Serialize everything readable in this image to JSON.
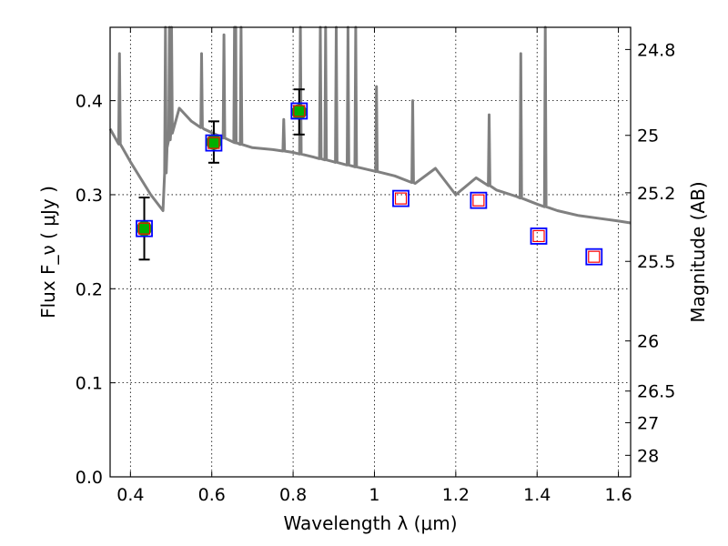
{
  "chart_data": {
    "type": "scatter",
    "xlabel": "Wavelength  λ (μm)",
    "ylabel": "Flux  F_ν  ( μJy )",
    "y2label": "Magnitude (AB)",
    "xlim": [
      0.35,
      1.63
    ],
    "ylim": [
      0.0,
      0.478
    ],
    "grid": true,
    "x_ticks": [
      {
        "v": 0.4,
        "label": "0.4"
      },
      {
        "v": 0.6,
        "label": "0.6"
      },
      {
        "v": 0.8,
        "label": "0.8"
      },
      {
        "v": 1.0,
        "label": "1"
      },
      {
        "v": 1.2,
        "label": "1.2"
      },
      {
        "v": 1.4,
        "label": "1.4"
      },
      {
        "v": 1.6,
        "label": "1.6"
      }
    ],
    "y_ticks": [
      {
        "v": 0.0,
        "label": "0.0"
      },
      {
        "v": 0.1,
        "label": "0.1"
      },
      {
        "v": 0.2,
        "label": "0.2"
      },
      {
        "v": 0.3,
        "label": "0.3"
      },
      {
        "v": 0.4,
        "label": "0.4"
      }
    ],
    "y2_ticks": [
      {
        "flux": 0.4544,
        "label": "24.8"
      },
      {
        "flux": 0.3631,
        "label": "25"
      },
      {
        "flux": 0.302,
        "label": "25.2"
      },
      {
        "flux": 0.2291,
        "label": "25.5"
      },
      {
        "flux": 0.1445,
        "label": "26"
      },
      {
        "flux": 0.0912,
        "label": "26.5"
      },
      {
        "flux": 0.0575,
        "label": "27"
      },
      {
        "flux": 0.0229,
        "label": "28"
      }
    ],
    "model_spectrum": {
      "color": "#808080",
      "continuum": [
        [
          0.35,
          0.37
        ],
        [
          0.4,
          0.335
        ],
        [
          0.45,
          0.3
        ],
        [
          0.48,
          0.283
        ],
        [
          0.49,
          0.35
        ],
        [
          0.52,
          0.392
        ],
        [
          0.55,
          0.378
        ],
        [
          0.58,
          0.37
        ],
        [
          0.62,
          0.362
        ],
        [
          0.66,
          0.355
        ],
        [
          0.7,
          0.35
        ],
        [
          0.75,
          0.348
        ],
        [
          0.8,
          0.345
        ],
        [
          0.85,
          0.34
        ],
        [
          0.9,
          0.335
        ],
        [
          0.95,
          0.33
        ],
        [
          1.0,
          0.325
        ],
        [
          1.05,
          0.32
        ],
        [
          1.1,
          0.312
        ],
        [
          1.15,
          0.328
        ],
        [
          1.2,
          0.3
        ],
        [
          1.25,
          0.318
        ],
        [
          1.3,
          0.305
        ],
        [
          1.35,
          0.298
        ],
        [
          1.4,
          0.29
        ],
        [
          1.45,
          0.283
        ],
        [
          1.5,
          0.278
        ],
        [
          1.55,
          0.275
        ],
        [
          1.6,
          0.272
        ],
        [
          1.63,
          0.27
        ]
      ],
      "lines": [
        [
          0.373,
          0.45
        ],
        [
          0.486,
          0.478
        ],
        [
          0.496,
          0.478
        ],
        [
          0.501,
          0.478
        ],
        [
          0.575,
          0.45
        ],
        [
          0.63,
          0.47
        ],
        [
          0.656,
          0.478
        ],
        [
          0.659,
          0.478
        ],
        [
          0.672,
          0.478
        ],
        [
          0.777,
          0.38
        ],
        [
          0.818,
          0.478
        ],
        [
          0.867,
          0.478
        ],
        [
          0.88,
          0.478
        ],
        [
          0.906,
          0.478
        ],
        [
          0.935,
          0.478
        ],
        [
          0.954,
          0.478
        ],
        [
          1.005,
          0.415
        ],
        [
          1.094,
          0.4
        ],
        [
          1.282,
          0.385
        ],
        [
          1.36,
          0.45
        ],
        [
          1.42,
          0.478
        ]
      ]
    },
    "measured_points": {
      "color": "#00b000",
      "x": [
        0.434,
        0.605,
        0.815
      ],
      "y": [
        0.264,
        0.356,
        0.388
      ],
      "yerr": [
        0.033,
        0.022,
        0.024
      ]
    },
    "model_band_fluxes": {
      "outer_color": "#0000ff",
      "inner_color": "#ff0000",
      "x": [
        0.434,
        0.605,
        0.815,
        1.065,
        1.256,
        1.404,
        1.54
      ],
      "y": [
        0.264,
        0.355,
        0.389,
        0.296,
        0.294,
        0.256,
        0.234
      ]
    }
  }
}
